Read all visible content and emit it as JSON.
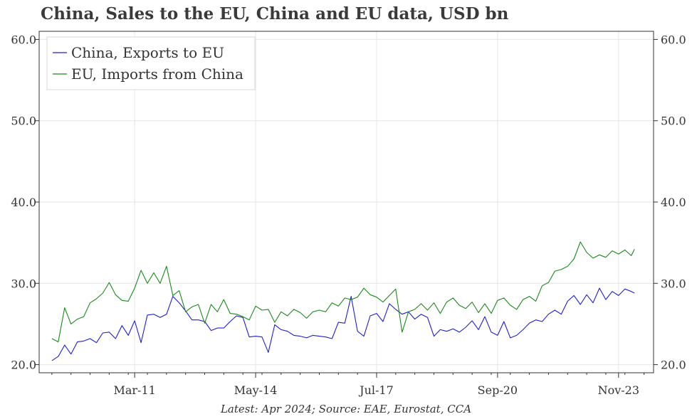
{
  "title": "China, Sales to the EU, China and EU data, USD bn",
  "footer": "Latest: Apr 2024; Source: EAE, Eurostat, CCA",
  "chart_data": {
    "type": "line",
    "title": "China, Sales to the EU, China and EU data, USD bn",
    "xlabel": "",
    "ylabel": "",
    "x_start": "2009-01",
    "x_end": "2024-04",
    "x_ticks": [
      "Mar-11",
      "May-14",
      "Jul-17",
      "Sep-20",
      "Nov-23"
    ],
    "x_tick_dates": [
      "2011-03",
      "2014-05",
      "2017-07",
      "2020-09",
      "2023-11"
    ],
    "ylim": [
      19.0,
      61.0
    ],
    "y_ticks": [
      "20.0",
      "30.0",
      "40.0",
      "50.0",
      "60.0"
    ],
    "y_tick_values": [
      20,
      30,
      40,
      50,
      60
    ],
    "grid": true,
    "legend": "top-left",
    "series": [
      {
        "name": "China, Exports to EU",
        "color": "#1f1fd6",
        "points": [
          [
            "2009-01",
            20.5
          ],
          [
            "2009-03",
            21.0
          ],
          [
            "2009-05",
            22.4
          ],
          [
            "2009-07",
            21.3
          ],
          [
            "2009-09",
            22.8
          ],
          [
            "2009-11",
            22.9
          ],
          [
            "2010-01",
            23.2
          ],
          [
            "2010-03",
            22.7
          ],
          [
            "2010-05",
            23.9
          ],
          [
            "2010-07",
            24.0
          ],
          [
            "2010-09",
            23.2
          ],
          [
            "2010-11",
            24.8
          ],
          [
            "2011-01",
            23.6
          ],
          [
            "2011-03",
            25.4
          ],
          [
            "2011-05",
            22.7
          ],
          [
            "2011-07",
            26.1
          ],
          [
            "2011-09",
            26.2
          ],
          [
            "2011-11",
            25.8
          ],
          [
            "2012-01",
            26.2
          ],
          [
            "2012-03",
            28.4
          ],
          [
            "2012-05",
            27.6
          ],
          [
            "2012-07",
            26.6
          ],
          [
            "2012-09",
            25.5
          ],
          [
            "2012-11",
            25.5
          ],
          [
            "2013-01",
            25.3
          ],
          [
            "2013-03",
            24.2
          ],
          [
            "2013-05",
            24.5
          ],
          [
            "2013-07",
            24.5
          ],
          [
            "2013-09",
            25.3
          ],
          [
            "2013-11",
            26.0
          ],
          [
            "2014-01",
            25.8
          ],
          [
            "2014-03",
            23.4
          ],
          [
            "2014-05",
            23.5
          ],
          [
            "2014-07",
            23.4
          ],
          [
            "2014-09",
            21.5
          ],
          [
            "2014-11",
            24.9
          ],
          [
            "2015-01",
            24.3
          ],
          [
            "2015-03",
            24.1
          ],
          [
            "2015-05",
            23.6
          ],
          [
            "2015-07",
            23.5
          ],
          [
            "2015-09",
            23.3
          ],
          [
            "2015-11",
            23.6
          ],
          [
            "2016-01",
            23.5
          ],
          [
            "2016-03",
            23.4
          ],
          [
            "2016-05",
            23.2
          ],
          [
            "2016-07",
            25.2
          ],
          [
            "2016-09",
            25.1
          ],
          [
            "2016-11",
            28.4
          ],
          [
            "2017-01",
            24.1
          ],
          [
            "2017-03",
            23.5
          ],
          [
            "2017-05",
            26.0
          ],
          [
            "2017-07",
            26.3
          ],
          [
            "2017-09",
            25.3
          ],
          [
            "2017-11",
            27.5
          ],
          [
            "2018-01",
            26.8
          ],
          [
            "2018-03",
            26.2
          ],
          [
            "2018-05",
            26.5
          ],
          [
            "2018-07",
            25.6
          ],
          [
            "2018-09",
            26.2
          ],
          [
            "2018-11",
            25.8
          ],
          [
            "2019-01",
            23.5
          ],
          [
            "2019-03",
            24.3
          ],
          [
            "2019-05",
            24.1
          ],
          [
            "2019-07",
            24.4
          ],
          [
            "2019-09",
            24.0
          ],
          [
            "2019-11",
            24.6
          ],
          [
            "2020-01",
            25.4
          ],
          [
            "2020-03",
            24.3
          ],
          [
            "2020-05",
            25.9
          ],
          [
            "2020-07",
            24.0
          ],
          [
            "2020-09",
            23.6
          ],
          [
            "2020-11",
            25.3
          ],
          [
            "2021-01",
            23.3
          ],
          [
            "2021-03",
            23.6
          ],
          [
            "2021-05",
            24.3
          ],
          [
            "2021-07",
            25.1
          ],
          [
            "2021-09",
            25.5
          ],
          [
            "2021-11",
            25.3
          ],
          [
            "2022-01",
            26.2
          ],
          [
            "2022-03",
            26.7
          ],
          [
            "2022-05",
            26.2
          ],
          [
            "2022-07",
            27.8
          ],
          [
            "2022-09",
            28.5
          ],
          [
            "2022-11",
            27.4
          ],
          [
            "2023-01",
            28.6
          ],
          [
            "2023-03",
            27.6
          ],
          [
            "2023-05",
            29.4
          ],
          [
            "2023-07",
            28.0
          ],
          [
            "2023-09",
            29.0
          ],
          [
            "2023-11",
            28.5
          ],
          [
            "2024-01",
            29.3
          ],
          [
            "2024-03",
            29.0
          ],
          [
            "2024-04",
            28.8
          ]
        ]
      },
      {
        "name": "EU, Imports from China",
        "color": "#1a8a1a",
        "points": [
          [
            "2009-01",
            23.2
          ],
          [
            "2009-03",
            22.8
          ],
          [
            "2009-05",
            27.0
          ],
          [
            "2009-07",
            25.0
          ],
          [
            "2009-09",
            25.6
          ],
          [
            "2009-11",
            25.9
          ],
          [
            "2010-01",
            27.6
          ],
          [
            "2010-03",
            28.1
          ],
          [
            "2010-05",
            28.8
          ],
          [
            "2010-07",
            30.1
          ],
          [
            "2010-09",
            28.6
          ],
          [
            "2010-11",
            27.9
          ],
          [
            "2011-01",
            27.8
          ],
          [
            "2011-03",
            29.4
          ],
          [
            "2011-05",
            31.6
          ],
          [
            "2011-07",
            30.0
          ],
          [
            "2011-09",
            31.3
          ],
          [
            "2011-11",
            30.0
          ],
          [
            "2012-01",
            32.1
          ],
          [
            "2012-03",
            28.5
          ],
          [
            "2012-05",
            29.1
          ],
          [
            "2012-07",
            26.5
          ],
          [
            "2012-09",
            27.1
          ],
          [
            "2012-11",
            27.4
          ],
          [
            "2013-01",
            25.1
          ],
          [
            "2013-03",
            27.4
          ],
          [
            "2013-05",
            26.5
          ],
          [
            "2013-07",
            28.0
          ],
          [
            "2013-09",
            26.3
          ],
          [
            "2013-11",
            26.2
          ],
          [
            "2014-01",
            25.9
          ],
          [
            "2014-03",
            25.5
          ],
          [
            "2014-05",
            27.2
          ],
          [
            "2014-07",
            26.7
          ],
          [
            "2014-09",
            26.8
          ],
          [
            "2014-11",
            25.2
          ],
          [
            "2015-01",
            26.5
          ],
          [
            "2015-03",
            26.0
          ],
          [
            "2015-05",
            26.8
          ],
          [
            "2015-07",
            26.4
          ],
          [
            "2015-09",
            25.7
          ],
          [
            "2015-11",
            26.5
          ],
          [
            "2016-01",
            26.7
          ],
          [
            "2016-03",
            26.5
          ],
          [
            "2016-05",
            27.6
          ],
          [
            "2016-07",
            27.2
          ],
          [
            "2016-09",
            28.2
          ],
          [
            "2016-11",
            28.0
          ],
          [
            "2017-01",
            28.3
          ],
          [
            "2017-03",
            29.4
          ],
          [
            "2017-05",
            28.6
          ],
          [
            "2017-07",
            28.3
          ],
          [
            "2017-09",
            27.7
          ],
          [
            "2017-11",
            28.5
          ],
          [
            "2018-01",
            29.3
          ],
          [
            "2018-03",
            24.0
          ],
          [
            "2018-05",
            26.5
          ],
          [
            "2018-07",
            26.8
          ],
          [
            "2018-09",
            27.5
          ],
          [
            "2018-11",
            26.7
          ],
          [
            "2019-01",
            27.6
          ],
          [
            "2019-03",
            26.3
          ],
          [
            "2019-05",
            27.7
          ],
          [
            "2019-07",
            28.2
          ],
          [
            "2019-09",
            27.3
          ],
          [
            "2019-11",
            26.9
          ],
          [
            "2020-01",
            27.7
          ],
          [
            "2020-03",
            26.4
          ],
          [
            "2020-05",
            27.5
          ],
          [
            "2020-07",
            26.3
          ],
          [
            "2020-09",
            27.9
          ],
          [
            "2020-11",
            28.2
          ],
          [
            "2021-01",
            27.3
          ],
          [
            "2021-03",
            26.8
          ],
          [
            "2021-05",
            28.0
          ],
          [
            "2021-07",
            28.4
          ],
          [
            "2021-09",
            27.8
          ],
          [
            "2021-11",
            29.7
          ],
          [
            "2022-01",
            30.1
          ],
          [
            "2022-03",
            31.5
          ],
          [
            "2022-05",
            31.7
          ],
          [
            "2022-07",
            32.1
          ],
          [
            "2022-09",
            33.0
          ],
          [
            "2022-11",
            35.1
          ],
          [
            "2023-01",
            33.8
          ],
          [
            "2023-03",
            33.1
          ],
          [
            "2023-05",
            33.5
          ],
          [
            "2023-07",
            33.2
          ],
          [
            "2023-09",
            34.0
          ],
          [
            "2023-11",
            33.6
          ],
          [
            "2024-01",
            34.1
          ],
          [
            "2024-03",
            33.4
          ],
          [
            "2024-04",
            34.2
          ]
        ]
      }
    ]
  }
}
